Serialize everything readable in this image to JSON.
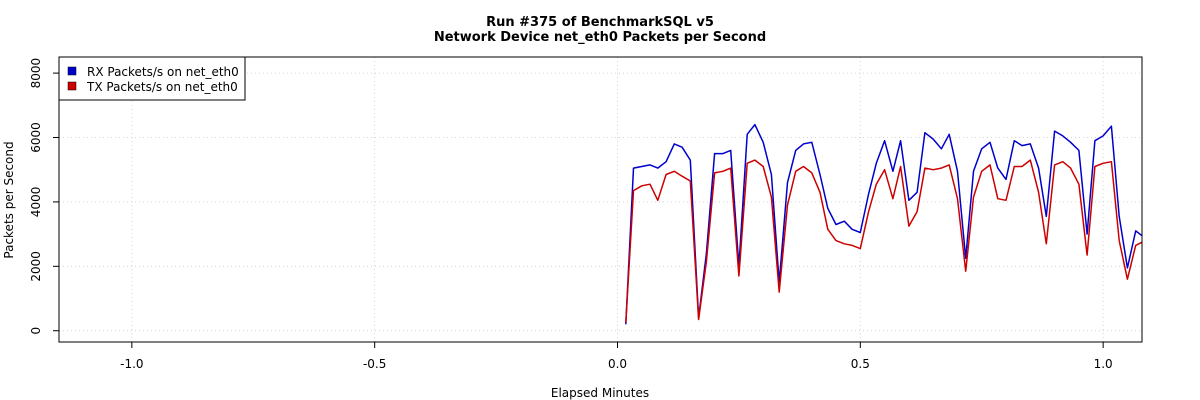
{
  "chart_data": {
    "type": "line",
    "title": "Run #375 of BenchmarkSQL v5",
    "subtitle": "Network Device net_eth0 Packets per Second",
    "xlabel": "Elapsed Minutes",
    "ylabel": "Packets per Second",
    "xlim": [
      -1.15,
      1.08
    ],
    "ylim": [
      -350,
      8500
    ],
    "xticks": [
      -1.0,
      -0.5,
      0.0,
      0.5,
      1.0
    ],
    "xtick_labels": [
      "-1.0",
      "-0.5",
      "0.0",
      "0.5",
      "1.0"
    ],
    "yticks": [
      0,
      2000,
      4000,
      6000,
      8000
    ],
    "ytick_labels": [
      "0",
      "2000",
      "4000",
      "6000",
      "8000"
    ],
    "grid": true,
    "legend_position": "top-left",
    "series": [
      {
        "name": "RX Packets/s on net_eth0",
        "color": "#0000cd",
        "x": [
          0.017,
          0.033,
          0.05,
          0.067,
          0.083,
          0.1,
          0.117,
          0.133,
          0.15,
          0.167,
          0.183,
          0.2,
          0.217,
          0.233,
          0.25,
          0.267,
          0.283,
          0.3,
          0.317,
          0.333,
          0.35,
          0.367,
          0.383,
          0.4,
          0.417,
          0.433,
          0.45,
          0.467,
          0.483,
          0.5,
          0.517,
          0.533,
          0.55,
          0.567,
          0.583,
          0.6,
          0.617,
          0.633,
          0.65,
          0.667,
          0.683,
          0.7,
          0.717,
          0.733,
          0.75,
          0.767,
          0.783,
          0.8,
          0.817,
          0.833,
          0.85,
          0.867,
          0.883,
          0.9,
          0.917,
          0.933,
          0.95,
          0.967,
          0.983,
          1.0,
          1.017,
          1.033,
          1.05,
          1.067,
          1.08
        ],
        "y": [
          200,
          5050,
          5100,
          5150,
          5050,
          5250,
          5800,
          5700,
          5300,
          400,
          2400,
          5500,
          5500,
          5600,
          2000,
          6100,
          6400,
          5850,
          4850,
          1500,
          4600,
          5600,
          5800,
          5850,
          4850,
          3800,
          3300,
          3400,
          3150,
          3050,
          4250,
          5200,
          5900,
          4950,
          5900,
          4050,
          4300,
          6150,
          5950,
          5650,
          6100,
          4950,
          2250,
          4950,
          5650,
          5850,
          5050,
          4700,
          5900,
          5750,
          5800,
          5050,
          3550,
          6200,
          6050,
          5850,
          5600,
          3000,
          5900,
          6050,
          6350,
          3550,
          1950,
          3100,
          2950
        ]
      },
      {
        "name": "TX Packets/s on net_eth0",
        "color": "#cd0000",
        "x": [
          0.017,
          0.033,
          0.05,
          0.067,
          0.083,
          0.1,
          0.117,
          0.133,
          0.15,
          0.167,
          0.183,
          0.2,
          0.217,
          0.233,
          0.25,
          0.267,
          0.283,
          0.3,
          0.317,
          0.333,
          0.35,
          0.367,
          0.383,
          0.4,
          0.417,
          0.433,
          0.45,
          0.467,
          0.483,
          0.5,
          0.517,
          0.533,
          0.55,
          0.567,
          0.583,
          0.6,
          0.617,
          0.633,
          0.65,
          0.667,
          0.683,
          0.7,
          0.717,
          0.733,
          0.75,
          0.767,
          0.783,
          0.8,
          0.817,
          0.833,
          0.85,
          0.867,
          0.883,
          0.9,
          0.917,
          0.933,
          0.95,
          0.967,
          0.983,
          1.0,
          1.017,
          1.033,
          1.05,
          1.067,
          1.08
        ],
        "y": [
          250,
          4350,
          4500,
          4550,
          4050,
          4850,
          4950,
          4800,
          4650,
          350,
          2150,
          4900,
          4950,
          5050,
          1700,
          5200,
          5300,
          5100,
          4150,
          1200,
          3900,
          4950,
          5100,
          4900,
          4300,
          3150,
          2800,
          2700,
          2650,
          2550,
          3700,
          4550,
          5000,
          4100,
          5100,
          3250,
          3700,
          5050,
          5000,
          5050,
          5150,
          4100,
          1850,
          4150,
          4950,
          5150,
          4100,
          4050,
          5100,
          5100,
          5300,
          4300,
          2700,
          5150,
          5250,
          5050,
          4550,
          2350,
          5100,
          5200,
          5250,
          2800,
          1600,
          2650,
          2750
        ]
      }
    ]
  }
}
